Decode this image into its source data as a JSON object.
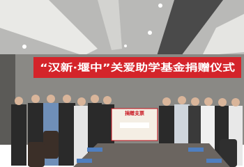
{
  "banner": {
    "text": "“汉新·堰中”关爱助学基金捐赠仪式"
  },
  "check_board": {
    "title": "捐赠支票"
  }
}
